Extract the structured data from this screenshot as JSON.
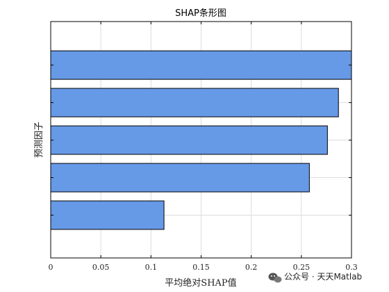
{
  "chart_data": {
    "type": "bar",
    "orientation": "horizontal",
    "title": "SHAP条形图",
    "xlabel": "平均绝对SHAP值",
    "ylabel": "预测因子",
    "xlim": [
      0,
      0.3
    ],
    "xticks": [
      "0",
      "0.05",
      "0.1",
      "0.15",
      "0.2",
      "0.25",
      "0.3"
    ],
    "categories": [
      "",
      "",
      "",
      "",
      ""
    ],
    "values": [
      0.3,
      0.287,
      0.276,
      0.258,
      0.113
    ],
    "bar_color": "#6699e6",
    "grid": true
  },
  "watermark": {
    "icon": "wechat-icon",
    "text": "公众号 · 天天Matlab"
  }
}
